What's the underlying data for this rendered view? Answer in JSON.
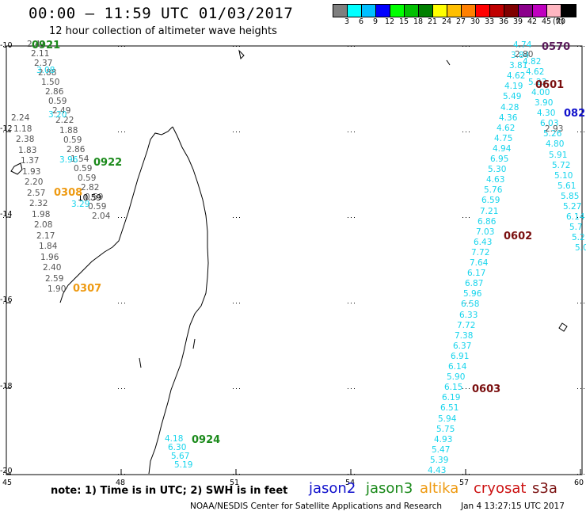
{
  "header": {
    "title": "00:00 – 11:59 UTC 01/03/2017",
    "subtitle": "12 hour collection of altimeter wave heights"
  },
  "colorbar": {
    "colors": [
      "#7f7f7f",
      "#00ffff",
      "#00bfff",
      "#0000ff",
      "#00ff00",
      "#00c000",
      "#008000",
      "#ffff00",
      "#ffbf00",
      "#ff8000",
      "#ff0000",
      "#c00000",
      "#800000",
      "#8b008b",
      "#bf00bf",
      "#ffb6c1",
      "#000000"
    ],
    "labels": [
      "3",
      "6",
      "9",
      "12",
      "15",
      "18",
      "21",
      "24",
      "27",
      "30",
      "33",
      "36",
      "39",
      "42",
      "45",
      "70"
    ],
    "unit": "(ft)"
  },
  "axes": {
    "lat_labels": [
      "-10",
      "-12",
      "-14",
      "-16",
      "-18",
      "-20"
    ],
    "lon_labels": [
      "45",
      "48",
      "51",
      "54",
      "57",
      "60"
    ]
  },
  "tracks": {
    "west_gray": [
      "2.41",
      "2.11",
      "2.37",
      "2.88",
      "1.50",
      "2.86",
      "0.59",
      "2.49",
      "2.22",
      "1.88",
      "0.59",
      "2.86",
      "1.54",
      "0.59",
      "0.59",
      "2.82",
      "0.59",
      "0.59",
      "2.04"
    ],
    "west_gray2": [
      "2.24",
      "1.18",
      "2.38",
      "1.83",
      "1.37",
      "1.93",
      "2.20",
      "2.57",
      "2.32",
      "1.98",
      "2.08",
      "2.17",
      "1.84",
      "1.96",
      "2.40",
      "2.59",
      "1.90"
    ],
    "west_cyan": [
      "3.08",
      "3.20",
      "3.96",
      "3.29"
    ],
    "west_black": [
      "10.59"
    ],
    "south_cyan": [
      "4.18",
      "6.30",
      "5.67",
      "5.19"
    ],
    "east_cyan": [
      "4.74",
      "3.84",
      "3.81",
      "4.62",
      "4.19",
      "5.49",
      "4.28",
      "4.36",
      "4.62",
      "4.75",
      "4.94",
      "6.95",
      "5.30",
      "4.63",
      "5.76",
      "6.59",
      "7.21",
      "6.86",
      "7.03",
      "6.43",
      "7.72",
      "7.64",
      "6.17",
      "6.87",
      "5.96",
      "6.58",
      "6.33",
      "7.72",
      "7.38",
      "6.37",
      "6.91",
      "6.14",
      "5.90",
      "6.15",
      "6.19",
      "6.51",
      "5.94",
      "5.75",
      "4.93",
      "5.47",
      "5.39",
      "4.43"
    ],
    "east_cyan2": [
      "4.82",
      "4.62",
      "5.23",
      "4.00",
      "3.90",
      "4.30",
      "6.03",
      "5.26",
      "4.80",
      "5.91",
      "5.72",
      "5.10",
      "5.61",
      "5.85",
      "5.27",
      "6.14",
      "5.7",
      "5.2",
      "5.0"
    ],
    "east_black": [
      "2.80",
      "2.93"
    ]
  },
  "time_labels": {
    "t0921": "0921",
    "t0922": "0922",
    "t0308": "0308",
    "t0307": "0307",
    "t0924": "0924",
    "t0601": "0601",
    "t0602": "0602",
    "t0603": "0603",
    "t082": "082",
    "t0570": "0570"
  },
  "footer": {
    "note": "note: 1) Time is in UTC; 2) SWH is in feet",
    "legend": {
      "jason2": "jason2",
      "jason3": "jason3",
      "altika": "altika",
      "cryosat": "cryosat",
      "s3a": "s3a"
    },
    "legend_colors": {
      "jason2": "#1010cc",
      "jason3": "#1b8a1b",
      "altika": "#ee9a12",
      "cryosat": "#cc1111",
      "s3a": "#7a1010"
    },
    "credit": "NOAA/NESDIS Center for Satellite Applications and Research",
    "timestamp": "Jan  4 13:27:15 UTC 2017"
  }
}
